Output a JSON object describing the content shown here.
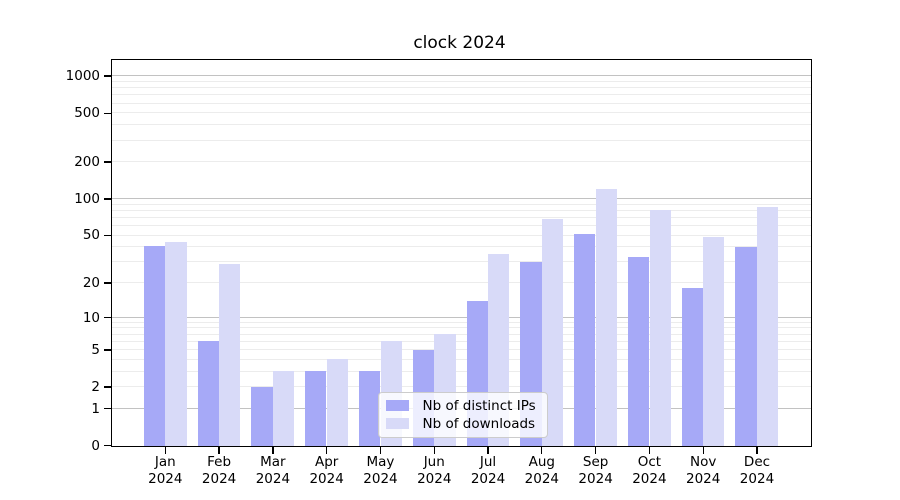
{
  "chart_data": {
    "type": "bar",
    "title": "clock 2024",
    "categories": [
      "Jan\n2024",
      "Feb\n2024",
      "Mar\n2024",
      "Apr\n2024",
      "May\n2024",
      "Jun\n2024",
      "Jul\n2024",
      "Aug\n2024",
      "Sep\n2024",
      "Oct\n2024",
      "Nov\n2024",
      "Dec\n2024"
    ],
    "series": [
      {
        "name": "Nb of distinct IPs",
        "color": "#a6a9f7",
        "values": [
          41,
          6,
          2,
          3,
          3,
          5,
          14,
          30,
          51,
          33,
          18,
          40
        ]
      },
      {
        "name": "Nb of downloads",
        "color": "#d8daf8",
        "values": [
          44,
          29,
          3,
          4,
          6,
          7,
          35,
          68,
          120,
          80,
          48,
          85
        ]
      }
    ],
    "xlabel": "",
    "ylabel": "",
    "y_ticks": [
      0,
      1,
      2,
      5,
      10,
      20,
      50,
      100,
      200,
      500,
      1000
    ],
    "y_scale": "log1p",
    "ylim": [
      0,
      1300
    ],
    "grid": "horizontal; solid gray lines at 1, 10, 100, 1000; faint minor lines at 2-9 of each decade",
    "legend_position": "inside lower center"
  }
}
